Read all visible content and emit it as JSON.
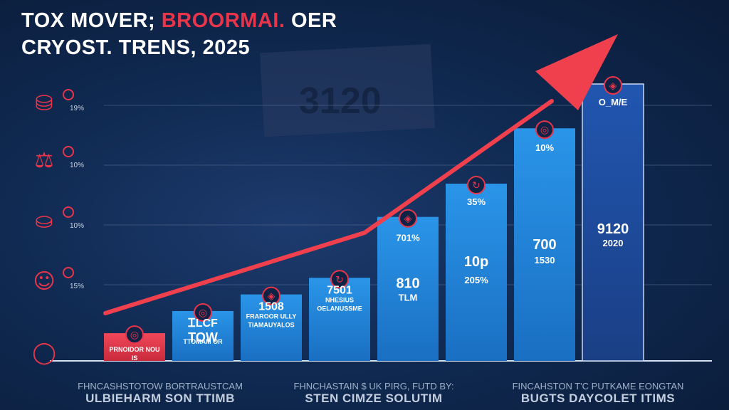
{
  "header": {
    "title_part1": "TOX MOVER; ",
    "title_accent": "BROORMAI.",
    "title_part2": " OER",
    "title_line2": "CRYOST.  TRENS, 2025"
  },
  "watermark": {
    "text": "3120"
  },
  "colors": {
    "background": "#0f2448",
    "bar_red": "#e8354a",
    "bar_blue": "#1f7fd4",
    "bar_dark_blue": "#1d4fa0",
    "trend_arrow": "#f0404e",
    "grid": "#4b6188"
  },
  "side_icons": [
    {
      "icon": "hand-money-bag-icon",
      "label": "19%"
    },
    {
      "icon": "balance-scale-icon",
      "label": "10%"
    },
    {
      "icon": "money-bag-icon",
      "label": "10%"
    },
    {
      "icon": "people-group-icon",
      "label": "15%"
    },
    {
      "icon": "ring-icon",
      "label": ""
    }
  ],
  "chart_data": {
    "type": "bar",
    "title": "",
    "xlabel": "",
    "ylabel": "",
    "grid": true,
    "trend_line": true,
    "bars": [
      {
        "value": 10,
        "color": "red",
        "icon": "globe-icon",
        "labels": [
          "PRNOIDOR NOU",
          "IS"
        ]
      },
      {
        "value": 18,
        "color": "blue",
        "icon": "globe-icon",
        "labels": [
          "ᏆLCF",
          "TOW",
          "TTOMAM OR"
        ]
      },
      {
        "value": 24,
        "color": "blue",
        "icon": "shield-icon",
        "labels": [
          "1508",
          "FRAROOR ULLY",
          "TIAMAUYALOS"
        ]
      },
      {
        "value": 30,
        "color": "blue",
        "icon": "arrows-icon",
        "labels": [
          "7501",
          "NHESIUS",
          "OELANUSSME"
        ]
      },
      {
        "value": 52,
        "color": "blue",
        "icon": "shield-icon",
        "labels": [
          "701%",
          "810",
          "TLM"
        ]
      },
      {
        "value": 64,
        "color": "blue",
        "icon": "arrows-icon",
        "labels": [
          "35%",
          "10p",
          "205%"
        ]
      },
      {
        "value": 84,
        "color": "blue",
        "icon": "globe-icon",
        "labels": [
          "10%",
          "700",
          "1530"
        ]
      },
      {
        "value": 100,
        "color": "dark-blue",
        "icon": "shield-icon",
        "labels": [
          "O_M/E",
          "9120",
          "2020"
        ]
      }
    ]
  },
  "footer": {
    "left": [
      "FHNCASHSTOTOW BORTRAUSTCAM",
      "ULBIEHARM SON TTIMB"
    ],
    "middle": [
      "FHNCHASTAIN $ UK PIRG, FUTD BY:",
      "STEN CIMZE SOLUTIM"
    ],
    "right": [
      "FINCAHSTON T'C PUTKAME EONGTAN",
      "BUGTS DAYCOLET ITIMS"
    ]
  }
}
